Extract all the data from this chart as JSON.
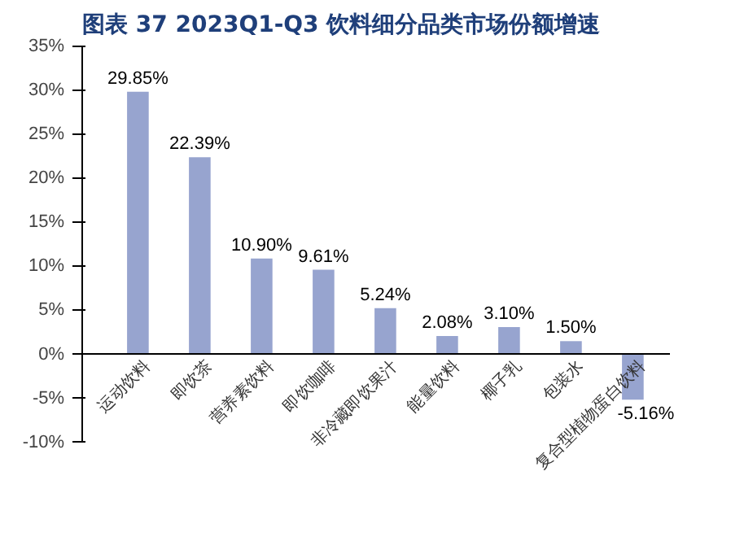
{
  "chart_data": {
    "type": "bar",
    "title": "图表 37  2023Q1-Q3 饮料细分品类市场份额增速",
    "categories": [
      "运动饮料",
      "即饮茶",
      "营养素饮料",
      "即饮咖啡",
      "非冷藏即饮果汁",
      "能量饮料",
      "椰子乳",
      "包装水",
      "复合型植物蛋白饮料"
    ],
    "values": [
      29.85,
      22.39,
      10.9,
      9.61,
      5.24,
      2.08,
      3.1,
      1.5,
      -5.16
    ],
    "value_labels": [
      "29.85%",
      "22.39%",
      "10.90%",
      "9.61%",
      "5.24%",
      "2.08%",
      "3.10%",
      "1.50%",
      "-5.16%"
    ],
    "color": "#97a4cf",
    "ylim": [
      -10,
      35
    ],
    "yticks": [
      {
        "value": -10,
        "label": "-10%"
      },
      {
        "value": -5,
        "label": "-5%"
      },
      {
        "value": 0,
        "label": "0%"
      },
      {
        "value": 5,
        "label": "5%"
      },
      {
        "value": 10,
        "label": "10%"
      },
      {
        "value": 15,
        "label": "15%"
      },
      {
        "value": 20,
        "label": "20%"
      },
      {
        "value": 25,
        "label": "25%"
      },
      {
        "value": 30,
        "label": "30%"
      },
      {
        "value": 35,
        "label": "35%"
      }
    ],
    "grid": false
  }
}
